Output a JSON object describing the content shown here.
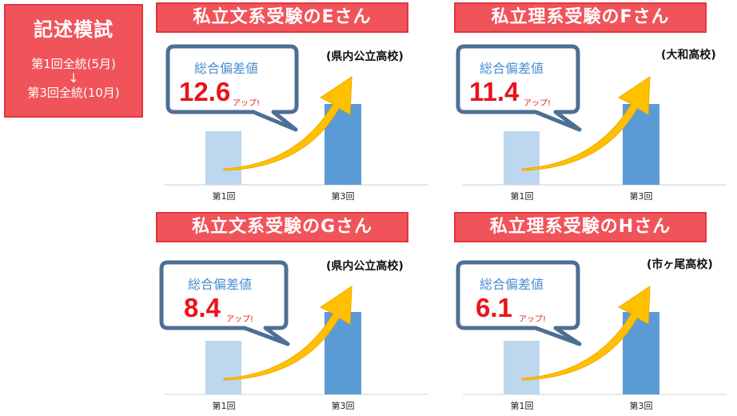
{
  "side": {
    "title": "記述模試",
    "line1": "第1回全統(5月)",
    "arrow": "↓",
    "line2": "第3回全統(10月)"
  },
  "colors": {
    "title_bg": "#f0545a",
    "bubble_border": "#4d6f94",
    "value_red": "#e8141a",
    "bar_before": "#bdd7ee",
    "bar_after": "#5b9bd5",
    "arrow": "#ffc000"
  },
  "chart_data": [
    {
      "type": "bar",
      "title": "私立文系受験のEさん",
      "school": "(県内公立高校)",
      "categories": [
        "第1回",
        "第3回"
      ],
      "callout": {
        "label": "総合偏差値",
        "value": "12.6",
        "suffix": "アップ!"
      },
      "delta": 12.6
    },
    {
      "type": "bar",
      "title": "私立理系受験のFさん",
      "school": "(大和高校)",
      "categories": [
        "第1回",
        "第3回"
      ],
      "callout": {
        "label": "総合偏差値",
        "value": "11.4",
        "suffix": "アップ!"
      },
      "delta": 11.4
    },
    {
      "type": "bar",
      "title": "私立文系受験のGさん",
      "school": "(県内公立高校)",
      "categories": [
        "第1回",
        "第3回"
      ],
      "callout": {
        "label": "総合偏差値",
        "value": "8.4",
        "suffix": "アップ!"
      },
      "delta": 8.4
    },
    {
      "type": "bar",
      "title": "私立理系受験のHさん",
      "school": "(市ヶ尾高校)",
      "categories": [
        "第1回",
        "第3回"
      ],
      "callout": {
        "label": "総合偏差値",
        "value": "6.1",
        "suffix": "アップ!"
      },
      "delta": 6.1
    }
  ]
}
